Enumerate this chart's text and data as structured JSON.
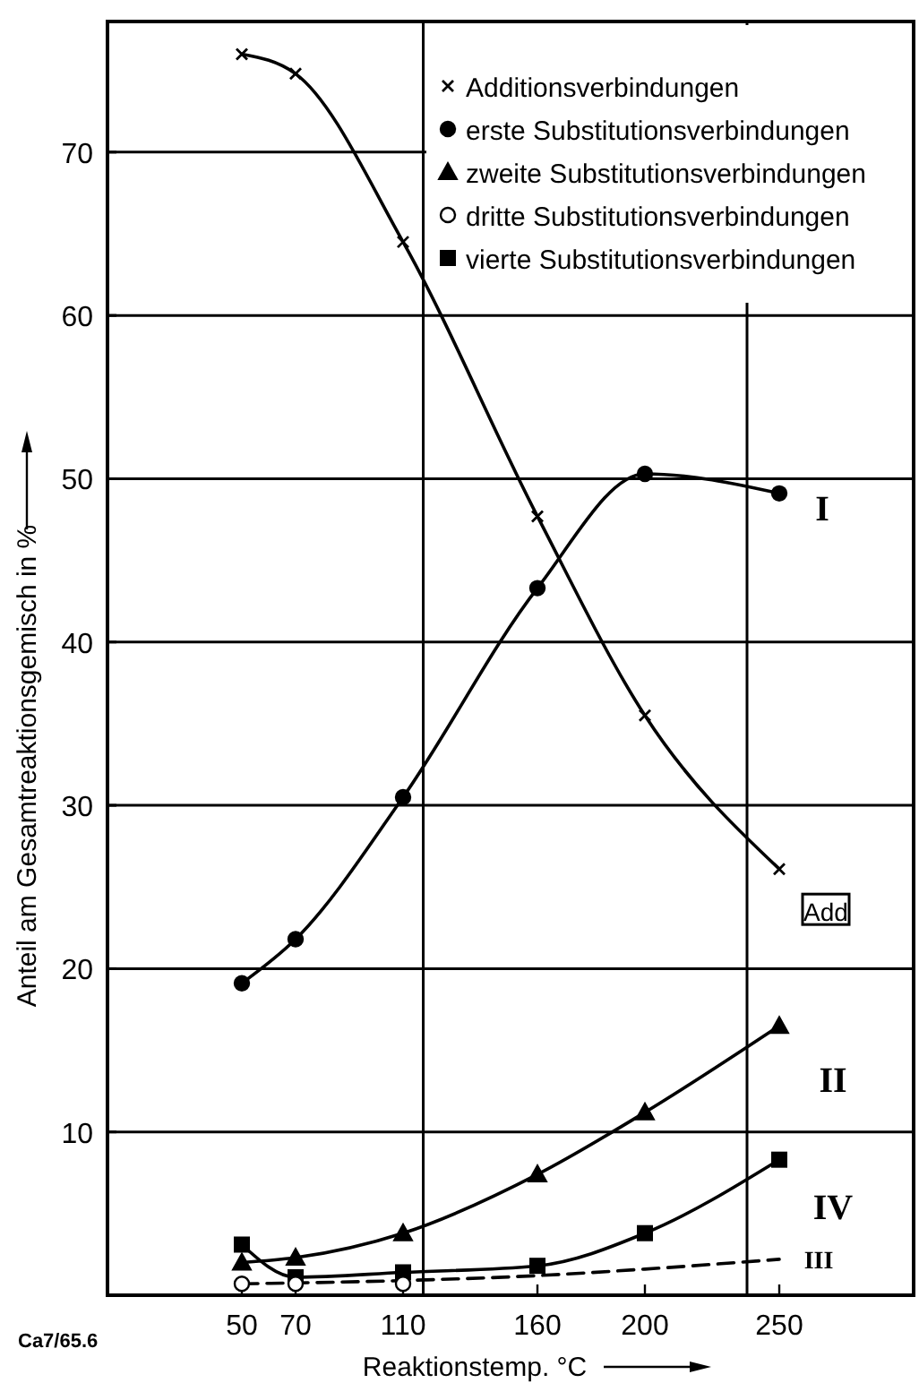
{
  "chart_data": {
    "type": "line",
    "xlabel": "Reaktionstemp. °C",
    "ylabel": "Anteil am Gesamtreaktionsgemisch in %",
    "xlim": [
      0,
      300
    ],
    "ylim": [
      0,
      78
    ],
    "xticks": [
      50,
      70,
      110,
      160,
      200,
      250
    ],
    "yticks": [
      10,
      20,
      30,
      40,
      50,
      60,
      70
    ],
    "grid": "y",
    "legend": "top right",
    "ref_lines": [
      {
        "axis": "x",
        "value": 117.5,
        "label": null
      },
      {
        "axis": "x",
        "value": 238,
        "label": null
      }
    ],
    "series": [
      {
        "name": "Additionsverbindungen",
        "color": "#000000",
        "marker": "cross",
        "line_style": "solid",
        "x": [
          50,
          70,
          110,
          160,
          200,
          250
        ],
        "values": [
          76.0,
          74.8,
          64.5,
          47.7,
          35.5,
          26.1
        ]
      },
      {
        "name": "erste Substitutionsverbindungen",
        "color": "#000000",
        "marker": "circle",
        "line_style": "solid",
        "x": [
          50,
          70,
          110,
          160,
          200,
          250
        ],
        "values": [
          19.1,
          21.8,
          30.5,
          43.3,
          50.3,
          49.1
        ]
      },
      {
        "name": "zweite Substitutionsverbindungen",
        "color": "#000000",
        "marker": "triangle",
        "line_style": "solid",
        "x": [
          50,
          70,
          110,
          160,
          200,
          250
        ],
        "values": [
          2.0,
          2.3,
          3.8,
          7.4,
          11.2,
          16.5
        ]
      },
      {
        "name": "dritte Substitutionsverbindungen",
        "type": "scatter",
        "color": "#ffffff",
        "marker": "circle",
        "x": [
          50,
          70,
          110
        ],
        "values": [
          0.7,
          0.7,
          0.7
        ]
      },
      {
        "color": "#000000",
        "marker": "none",
        "line_style": "dashed",
        "x": [
          50,
          110,
          160,
          200,
          250
        ],
        "values": [
          0.7,
          0.9,
          1.2,
          1.6,
          2.2
        ]
      },
      {
        "name": "vierte Substitutionsverbindungen",
        "color": "#000000",
        "marker": "square",
        "line_style": "solid",
        "x": [
          50,
          70,
          110,
          160,
          200,
          250
        ],
        "values": [
          3.1,
          1.1,
          1.4,
          1.8,
          3.8,
          8.3
        ]
      }
    ],
    "annotations": [
      "I",
      "Add",
      "II",
      "IV",
      "III",
      "Ca7/65.6"
    ]
  }
}
